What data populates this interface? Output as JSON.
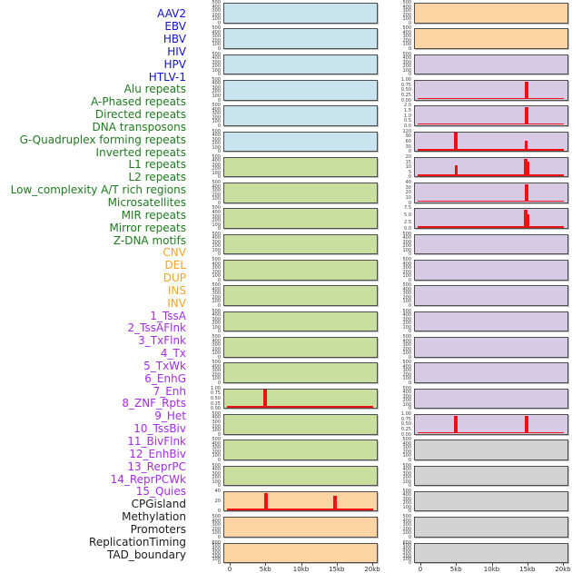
{
  "style": {
    "background": "#ffffff",
    "label_colors": {
      "virus": "#1212cf",
      "repeat": "#1f7a1f",
      "sv": "#f7a427",
      "state": "#a52be8",
      "other": "#1a1a1a"
    },
    "panel_colors": {
      "virus": "#c8e4ef",
      "repeat": "#c8dfa0",
      "sv": "#fcd3a2",
      "state": "#d6cae4",
      "other": "#d3d3d3"
    },
    "signal_color": "#ee1111",
    "panel_border": "#4e4e4e",
    "tick_text": "#3c3c3c"
  },
  "chart_data": {
    "type": "line",
    "title": "",
    "subtitle": "",
    "layout": {
      "columns": 2,
      "rows": 22,
      "order": "column-major",
      "grid": false,
      "legend": "none"
    },
    "x_axis": {
      "tick_labels": [
        "0",
        "5kb",
        "10kb",
        "15kb",
        "20kb"
      ],
      "range_kb": [
        0,
        20
      ]
    },
    "default_yticks": [
      "500",
      "400",
      "300",
      "200",
      "100",
      "0"
    ],
    "tracks": [
      {
        "name": "AAV2",
        "group": "virus"
      },
      {
        "name": "EBV",
        "group": "virus"
      },
      {
        "name": "HBV",
        "group": "virus"
      },
      {
        "name": "HIV",
        "group": "virus"
      },
      {
        "name": "HPV",
        "group": "virus"
      },
      {
        "name": "HTLV-1",
        "group": "virus"
      },
      {
        "name": "Alu repeats",
        "group": "repeat"
      },
      {
        "name": "A-Phased repeats",
        "group": "repeat"
      },
      {
        "name": "Directed repeats",
        "group": "repeat"
      },
      {
        "name": "DNA transposons",
        "group": "repeat"
      },
      {
        "name": "G-Quadruplex forming repeats",
        "group": "repeat"
      },
      {
        "name": "Inverted repeats",
        "group": "repeat"
      },
      {
        "name": "L1 repeats",
        "group": "repeat"
      },
      {
        "name": "L2 repeats",
        "group": "repeat"
      },
      {
        "name": "Low_complexity A/T rich regions",
        "group": "repeat"
      },
      {
        "name": "Microsatellites",
        "group": "repeat",
        "yticks": [
          "1.00",
          "0.75",
          "0.50",
          "0.25",
          "0.00"
        ],
        "baseline": true,
        "peaks": [
          {
            "kb": 5,
            "value": 1.0
          }
        ],
        "peaks_render": [
          {
            "f": 0.265,
            "h": 0.97,
            "w": 4
          }
        ]
      },
      {
        "name": "MIR repeats",
        "group": "repeat"
      },
      {
        "name": "Mirror repeats",
        "group": "repeat"
      },
      {
        "name": "Z-DNA motifs",
        "group": "repeat"
      },
      {
        "name": "CNV",
        "group": "sv",
        "yticks": [
          "40",
          "20",
          "0"
        ],
        "baseline": true,
        "peaks": [
          {
            "kb": 5,
            "value": 50
          },
          {
            "kb": 15,
            "value": 40
          }
        ],
        "peaks_render": [
          {
            "f": 0.27,
            "h": 0.97,
            "w": 4
          },
          {
            "f": 0.72,
            "h": 0.78,
            "w": 4
          }
        ]
      },
      {
        "name": "DEL",
        "group": "sv"
      },
      {
        "name": "DUP",
        "group": "sv",
        "yticks": [
          "600",
          "500",
          "400",
          "300",
          "200",
          "100",
          "0"
        ]
      },
      {
        "name": "INS",
        "group": "sv"
      },
      {
        "name": "INV",
        "group": "sv"
      },
      {
        "name": "1_TssA",
        "group": "state"
      },
      {
        "name": "2_TssAFlnk",
        "group": "state",
        "yticks": [
          "1.00",
          "0.75",
          "0.50",
          "0.25",
          "0.00"
        ],
        "baseline": true,
        "peaks": [
          {
            "kb": 15,
            "value": 1.0
          }
        ],
        "peaks_render": [
          {
            "f": 0.722,
            "h": 0.97,
            "w": 4
          }
        ]
      },
      {
        "name": "3_TxFlnk",
        "group": "state",
        "yticks": [
          "2.0",
          "1.5",
          "1.0",
          "0.5",
          "0.0"
        ],
        "baseline": true,
        "peaks": [
          {
            "kb": 15,
            "value": 2.0
          }
        ],
        "peaks_render": [
          {
            "f": 0.722,
            "h": 0.97,
            "w": 4
          }
        ]
      },
      {
        "name": "4_Tx",
        "group": "state",
        "yticks": [
          "120",
          "90",
          "60",
          "30",
          "0"
        ],
        "baseline": true,
        "peaks": [
          {
            "kb": 5,
            "value": 125
          },
          {
            "kb": 15,
            "value": 65
          }
        ],
        "peaks_render": [
          {
            "f": 0.265,
            "h": 0.97,
            "w": 4
          },
          {
            "f": 0.722,
            "h": 0.52,
            "w": 3
          }
        ]
      },
      {
        "name": "5_TxWk",
        "group": "state",
        "yticks": [
          "20",
          "15",
          "10",
          "5",
          "0"
        ],
        "baseline": true,
        "peaks": [
          {
            "kb": 5,
            "value": 13
          },
          {
            "kb": 15,
            "value": 21
          }
        ],
        "peaks_render": [
          {
            "f": 0.265,
            "h": 0.6,
            "w": 3
          },
          {
            "f": 0.718,
            "h": 0.97,
            "w": 4
          },
          {
            "f": 0.737,
            "h": 0.8,
            "w": 2
          }
        ]
      },
      {
        "name": "6_EnhG",
        "group": "state",
        "yticks": [
          "40",
          "30",
          "20",
          "10",
          "0"
        ],
        "baseline": true,
        "peaks": [
          {
            "kb": 15,
            "value": 42
          }
        ],
        "peaks_render": [
          {
            "f": 0.722,
            "h": 0.97,
            "w": 4
          }
        ]
      },
      {
        "name": "7_Enh",
        "group": "state",
        "yticks": [
          "7.5",
          "5.0",
          "2.5",
          "0.0"
        ],
        "baseline": true,
        "peaks": [
          {
            "kb": 15,
            "value": 7.8
          }
        ],
        "peaks_render": [
          {
            "f": 0.718,
            "h": 0.97,
            "w": 4
          },
          {
            "f": 0.737,
            "h": 0.72,
            "w": 2
          }
        ]
      },
      {
        "name": "8_ZNF_Rpts",
        "group": "state"
      },
      {
        "name": "9_Het",
        "group": "state"
      },
      {
        "name": "10_TssBiv",
        "group": "state"
      },
      {
        "name": "11_BivFlnk",
        "group": "state"
      },
      {
        "name": "12_EnhBiv",
        "group": "state"
      },
      {
        "name": "13_ReprPC",
        "group": "state"
      },
      {
        "name": "14_ReprPCWk",
        "group": "state"
      },
      {
        "name": "15_Quies",
        "group": "state",
        "yticks": [
          "1.00",
          "0.75",
          "0.50",
          "0.25",
          "0.00"
        ],
        "baseline": true,
        "peaks": [
          {
            "kb": 5,
            "value": 1.0
          },
          {
            "kb": 15,
            "value": 1.0
          }
        ],
        "peaks_render": [
          {
            "f": 0.265,
            "h": 0.97,
            "w": 4
          },
          {
            "f": 0.722,
            "h": 0.97,
            "w": 4
          }
        ]
      },
      {
        "name": "CPGisland",
        "group": "other"
      },
      {
        "name": "Methylation",
        "group": "other"
      },
      {
        "name": "Promoters",
        "group": "other"
      },
      {
        "name": "ReplicationTiming",
        "group": "other"
      },
      {
        "name": "TAD_boundary",
        "group": "other",
        "yticks": [
          "600",
          "500",
          "400",
          "300",
          "200",
          "100",
          "0"
        ]
      }
    ]
  }
}
